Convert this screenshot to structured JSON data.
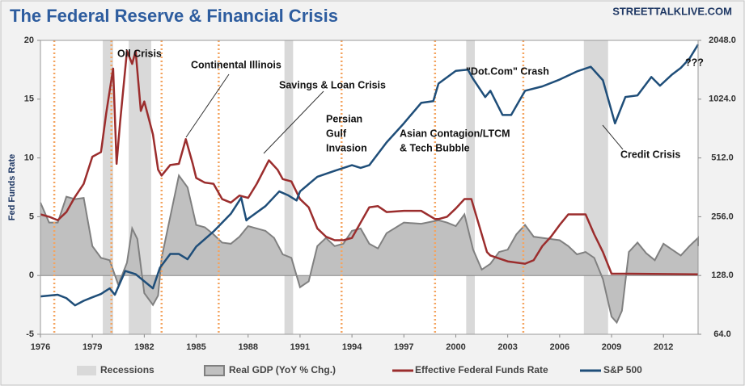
{
  "chart_data": {
    "type": "line",
    "title": "The Federal Reserve & Financial Crisis",
    "brand": "STREETTALKLIVE.COM",
    "ylabel": "Fed Funds Rate",
    "xlim": [
      1976,
      2014
    ],
    "xticks": [
      1976,
      1979,
      1982,
      1985,
      1988,
      1991,
      1994,
      1997,
      2000,
      2003,
      2006,
      2009,
      2012
    ],
    "ylim": [
      -5,
      20
    ],
    "yticks": [
      -5,
      0,
      5,
      10,
      15,
      20
    ],
    "y2lim": [
      64,
      2048
    ],
    "y2log": true,
    "y2ticks": [
      {
        "value": 64,
        "label": "64.0"
      },
      {
        "value": 128,
        "label": "128.0"
      },
      {
        "value": 256,
        "label": "256.0"
      },
      {
        "value": 512,
        "label": "512.0"
      },
      {
        "value": 1024,
        "label": "1024.0"
      },
      {
        "value": 2048,
        "label": "2048.0"
      }
    ],
    "recessions": {
      "name": "Recessions",
      "color": "#d9d9d9",
      "spans": [
        [
          1979.6,
          1980.2
        ],
        [
          1981.1,
          1982.4
        ],
        [
          1990.1,
          1990.6
        ],
        [
          2000.6,
          2001.1
        ],
        [
          2007.4,
          2008.8
        ]
      ]
    },
    "event_lines": {
      "color": "#f4a460",
      "x": [
        1976.8,
        1980.1,
        1983.0,
        1986.3,
        1993.4,
        1998.8,
        2003.9
      ]
    },
    "series": [
      {
        "name": "Real GDP (YoY % Chg.)",
        "kind": "area",
        "color": "#c0c0c0",
        "stroke": "#808080",
        "x": [
          1976,
          1976.5,
          1977,
          1977.5,
          1978,
          1978.5,
          1979,
          1979.5,
          1980,
          1980.5,
          1981,
          1981.3,
          1981.6,
          1982,
          1982.5,
          1982.8,
          1983,
          1983.5,
          1984,
          1984.5,
          1985,
          1985.5,
          1986,
          1986.5,
          1987,
          1987.5,
          1988,
          1988.5,
          1989,
          1989.5,
          1990,
          1990.5,
          1991,
          1991.5,
          1992,
          1992.5,
          1993,
          1993.5,
          1994,
          1994.5,
          1995,
          1995.5,
          1996,
          1997,
          1998,
          1999,
          1999.5,
          2000,
          2000.5,
          2001,
          2001.5,
          2002,
          2002.5,
          2003,
          2003.5,
          2004,
          2004.5,
          2005,
          2006,
          2006.5,
          2007,
          2007.5,
          2008,
          2008.5,
          2009,
          2009.3,
          2009.6,
          2010,
          2010.5,
          2011,
          2011.5,
          2012,
          2012.5,
          2013,
          2013.5,
          2014,
          2014
        ],
        "values": [
          6.2,
          4.5,
          4.5,
          6.7,
          6.5,
          6.6,
          2.5,
          1.5,
          1.3,
          -0.8,
          1.1,
          4.0,
          3.1,
          -1.5,
          -2.5,
          -1.7,
          1.5,
          5,
          8.5,
          7.5,
          4.3,
          4.1,
          3.5,
          2.8,
          2.7,
          3.3,
          4.2,
          4,
          3.8,
          3.2,
          1.8,
          1.5,
          -1,
          -0.5,
          2.5,
          3.2,
          2.5,
          2.7,
          3.8,
          4,
          2.7,
          2.3,
          3.6,
          4.5,
          4.4,
          4.7,
          4.5,
          4.2,
          5.2,
          2.2,
          0.5,
          1,
          2,
          2.2,
          3.5,
          4.3,
          3.3,
          3.2,
          3,
          2.5,
          1.8,
          2,
          1.5,
          -0.3,
          -3.5,
          -4.0,
          -3,
          2,
          2.8,
          1.9,
          1.3,
          2.7,
          2.2,
          1.7,
          2.5,
          3.2,
          2.5
        ]
      },
      {
        "name": "Effective Federal Funds Rate",
        "kind": "line",
        "color": "#9b2d2d",
        "x": [
          1976,
          1976.5,
          1977,
          1977.5,
          1978,
          1978.5,
          1979,
          1979.5,
          1979.8,
          1980.2,
          1980.4,
          1980.6,
          1981.0,
          1981.3,
          1981.5,
          1981.8,
          1982,
          1982.5,
          1982.8,
          1983,
          1983.5,
          1984,
          1984.4,
          1984.8,
          1985,
          1985.5,
          1986,
          1986.5,
          1987,
          1987.5,
          1988,
          1988.5,
          1989.2,
          1989.7,
          1990,
          1990.5,
          1991,
          1991.5,
          1992,
          1992.5,
          1993,
          1993.5,
          1994,
          1994.5,
          1995,
          1995.5,
          1996,
          1997,
          1998,
          1998.8,
          1999,
          1999.5,
          2000,
          2000.5,
          2000.9,
          2001.3,
          2001.8,
          2002,
          2003,
          2004,
          2004.5,
          2005,
          2005.5,
          2006,
          2006.5,
          2007.5,
          2008,
          2008.5,
          2009,
          2010,
          2014
        ],
        "values": [
          5.2,
          5.0,
          4.7,
          5.4,
          6.7,
          7.8,
          10.1,
          10.5,
          13.8,
          17.6,
          9.5,
          13,
          19.1,
          18,
          19.1,
          14,
          14.8,
          12,
          9,
          8.5,
          9.4,
          9.5,
          11.6,
          9.5,
          8.3,
          7.9,
          7.8,
          6.5,
          6.2,
          6.8,
          6.6,
          7.8,
          9.8,
          9,
          8.2,
          8,
          6.5,
          5.8,
          4,
          3.3,
          3,
          3,
          3.2,
          4.5,
          5.8,
          5.9,
          5.4,
          5.5,
          5.5,
          4.8,
          4.8,
          5,
          5.7,
          6.5,
          6.5,
          4.5,
          2,
          1.7,
          1.2,
          1.0,
          1.3,
          2.5,
          3.3,
          4.3,
          5.2,
          5.2,
          3.5,
          2,
          0.15,
          0.15,
          0.1
        ]
      },
      {
        "name": "S&P 500",
        "kind": "line",
        "axis": "y2",
        "color": "#1f4e79",
        "x": [
          1976,
          1977,
          1977.5,
          1978,
          1978.5,
          1979,
          1979.5,
          1980,
          1980.3,
          1980.9,
          1981.5,
          1982.5,
          1982.9,
          1983.5,
          1984,
          1984.5,
          1985,
          1986,
          1987,
          1987.6,
          1987.9,
          1988,
          1989,
          1989.8,
          1990.3,
          1990.8,
          1991,
          1992,
          1993,
          1994,
          1994.5,
          1995,
          1996,
          1997,
          1998,
          1998.7,
          1999,
          2000,
          2000.7,
          2001,
          2001.7,
          2002,
          2002.7,
          2003.2,
          2004,
          2005,
          2006,
          2007,
          2007.8,
          2008.5,
          2009.2,
          2009.8,
          2010.5,
          2011.3,
          2011.8,
          2012.5,
          2013,
          2013.5,
          2014
        ],
        "values": [
          100,
          102,
          98,
          90,
          95,
          99,
          103,
          110,
          102,
          135,
          130,
          110,
          140,
          165,
          165,
          155,
          180,
          215,
          265,
          320,
          245,
          250,
          290,
          345,
          330,
          310,
          345,
          410,
          440,
          470,
          455,
          470,
          615,
          770,
          980,
          1000,
          1230,
          1430,
          1450,
          1300,
          1050,
          1130,
          850,
          850,
          1130,
          1190,
          1290,
          1420,
          1500,
          1280,
          770,
          1050,
          1070,
          1330,
          1200,
          1370,
          1480,
          1650,
          1950
        ]
      }
    ],
    "annotations": [
      [
        "Oil Crisis"
      ],
      [
        "Continental Illinois"
      ],
      [
        "Savings & Loan Crisis"
      ],
      [
        "Persian",
        "Gulf",
        "Invasion"
      ],
      [
        "Asian Contagion/LTCM",
        "& Tech Bubble"
      ],
      [
        "\"Dot.Com\" Crash"
      ],
      [
        "Credit Crisis"
      ],
      [
        "???"
      ]
    ]
  }
}
